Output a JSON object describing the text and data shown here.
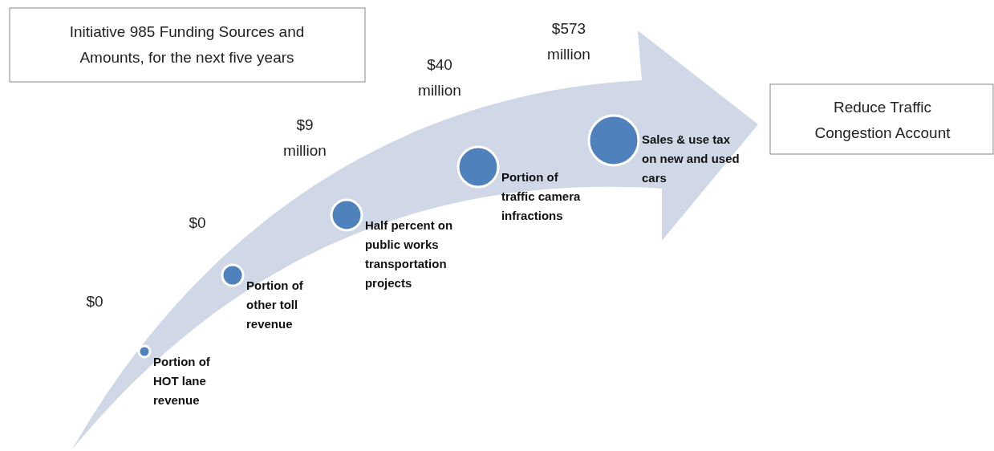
{
  "chart_data": {
    "type": "other",
    "title": "Initiative 985 Funding Sources and Amounts, for the next five years",
    "categories": [
      "Portion of HOT lane revenue",
      "Portion of other toll revenue",
      "Half percent on public works transportation projects",
      "Portion of traffic camera infractions",
      "Sales & use tax on new and used cars"
    ],
    "values": [
      0,
      0,
      9,
      40,
      573
    ],
    "value_labels": [
      "$0",
      "$0",
      "$9 million",
      "$40 million",
      "$573 million"
    ],
    "color": "#4f81bd",
    "annotations": [
      "Reduce Traffic Congestion Account"
    ]
  }
}
